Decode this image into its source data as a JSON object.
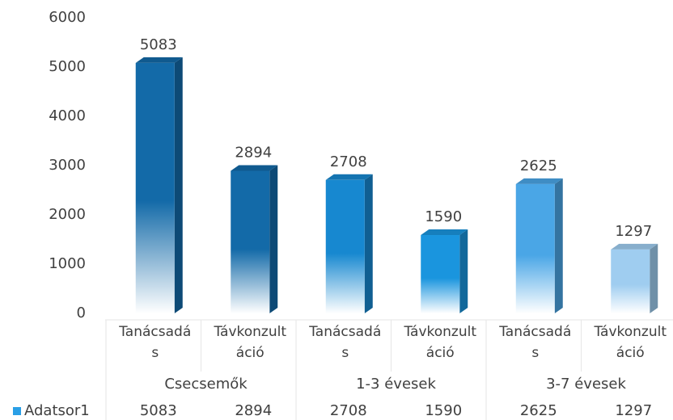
{
  "chart_data": {
    "type": "bar3d",
    "categories": [
      "Tanácsadás",
      "Távkonzultáció",
      "Tanácsadás",
      "Távkonzultáció",
      "Tanácsadás",
      "Távkonzultáció"
    ],
    "groups": [
      "Csecsemők",
      "1-3 évesek",
      "3-7 évesek"
    ],
    "series": [
      {
        "name": "Adatsor1",
        "color": "#2a9fe6",
        "colors": [
          "#136aa8",
          "#136aa8",
          "#1788d0",
          "#1a95de",
          "#4aa6e6",
          "#9fcdf0"
        ],
        "values": [
          5083,
          2894,
          2708,
          1590,
          2625,
          1297
        ]
      }
    ],
    "ylim": [
      0,
      6000
    ],
    "yticks": [
      0,
      1000,
      2000,
      3000,
      4000,
      5000,
      6000
    ],
    "data_table": true
  }
}
